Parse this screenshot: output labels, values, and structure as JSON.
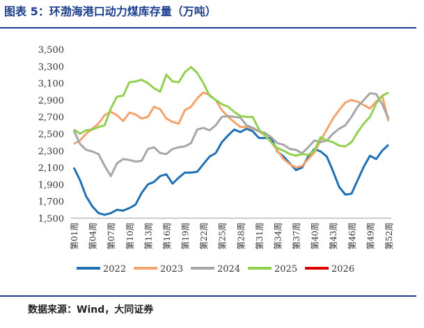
{
  "chart_data": {
    "type": "line",
    "title": "图表 5：环渤海港口动力煤库存量（万吨）",
    "source": "数据来源：Wind，大同证券",
    "categories": [
      "第01周",
      null,
      null,
      "第04周",
      null,
      null,
      "第07周",
      null,
      null,
      "第10周",
      null,
      null,
      "第13周",
      null,
      null,
      "第16周",
      null,
      null,
      "第19周",
      null,
      null,
      "第22周",
      null,
      null,
      "第25周",
      null,
      null,
      "第28周",
      null,
      null,
      "第31周",
      null,
      null,
      "第34周",
      null,
      null,
      "第37周",
      null,
      null,
      "第40周",
      null,
      null,
      "第43周",
      null,
      null,
      "第46周",
      null,
      null,
      "第49周",
      null,
      null,
      "第52周"
    ],
    "ylim": [
      1500,
      3500
    ],
    "yticks": [
      {
        "value": 1500,
        "label": "1,500"
      },
      {
        "value": 1700,
        "label": "1,700"
      },
      {
        "value": 1900,
        "label": "1,900"
      },
      {
        "value": 2100,
        "label": "2,100"
      },
      {
        "value": 2300,
        "label": "2,300"
      },
      {
        "value": 2500,
        "label": "2,500"
      },
      {
        "value": 2700,
        "label": "2,700"
      },
      {
        "value": 2900,
        "label": "2,900"
      },
      {
        "value": 3100,
        "label": "3,100"
      },
      {
        "value": 3300,
        "label": "3,300"
      },
      {
        "value": 3500,
        "label": "3,500"
      }
    ],
    "grid": false,
    "legend": "bottom",
    "series": [
      {
        "name": "2022",
        "color": "#1f6fb4",
        "values": [
          2100,
          1950,
          1760,
          1640,
          1560,
          1540,
          1560,
          1600,
          1590,
          1620,
          1660,
          1800,
          1900,
          1930,
          2000,
          2020,
          1910,
          1980,
          2040,
          2040,
          2050,
          2140,
          2230,
          2270,
          2400,
          2480,
          2550,
          2520,
          2560,
          2530,
          2450,
          2450,
          2450,
          2290,
          2230,
          2150,
          2070,
          2100,
          2230,
          2320,
          2290,
          2230,
          2060,
          1870,
          1780,
          1790,
          1950,
          2110,
          2240,
          2200,
          2300,
          2370
        ]
      },
      {
        "name": "2023",
        "color": "#f4a36b",
        "values": [
          2380,
          2420,
          2500,
          2560,
          2620,
          2720,
          2760,
          2720,
          2650,
          2750,
          2730,
          2680,
          2700,
          2820,
          2790,
          2680,
          2640,
          2620,
          2780,
          2820,
          2920,
          2990,
          2960,
          2900,
          2780,
          2700,
          2640,
          2580,
          2580,
          2560,
          2530,
          2480,
          2400,
          2300,
          2200,
          2140,
          2100,
          2120,
          2200,
          2280,
          2420,
          2550,
          2680,
          2780,
          2870,
          2900,
          2880,
          2840,
          2800,
          2880,
          2950,
          2650
        ]
      },
      {
        "name": "2024",
        "color": "#a6a6a6",
        "values": [
          2540,
          2380,
          2310,
          2290,
          2260,
          2120,
          2000,
          2150,
          2200,
          2190,
          2170,
          2180,
          2320,
          2340,
          2270,
          2260,
          2320,
          2340,
          2350,
          2390,
          2550,
          2570,
          2540,
          2600,
          2700,
          2710,
          2700,
          2690,
          2600,
          2570,
          2530,
          2510,
          2460,
          2390,
          2370,
          2320,
          2310,
          2270,
          2340,
          2420,
          2400,
          2420,
          2500,
          2560,
          2600,
          2700,
          2820,
          2900,
          2980,
          2970,
          2850,
          2680
        ]
      },
      {
        "name": "2025",
        "color": "#92d050",
        "values": [
          2550,
          2500,
          2540,
          2550,
          2580,
          2600,
          2800,
          2940,
          2950,
          3110,
          3120,
          3140,
          3100,
          3040,
          3000,
          3200,
          3120,
          3110,
          3230,
          3290,
          3220,
          3100,
          2950,
          2900,
          2850,
          2820,
          2760,
          2710,
          2700,
          2700,
          2550,
          2480,
          2400,
          2330,
          2300,
          2260,
          2240,
          2260,
          2250,
          2300,
          2460,
          2420,
          2400,
          2360,
          2350,
          2400,
          2520,
          2620,
          2700,
          2860,
          2950,
          2990
        ]
      },
      {
        "name": "2026",
        "color": "#e00000",
        "values": [
          null,
          null,
          null,
          null,
          null,
          null,
          null,
          null,
          null,
          null,
          null,
          null,
          null,
          null,
          null,
          null,
          null,
          null,
          null,
          null,
          null,
          null,
          null,
          null,
          null,
          null,
          null,
          null,
          null,
          null,
          null,
          null,
          null,
          null,
          null,
          null,
          null,
          null,
          null,
          null,
          null,
          null,
          null,
          null,
          null,
          null,
          null,
          null,
          null,
          null,
          null,
          null
        ]
      }
    ]
  }
}
